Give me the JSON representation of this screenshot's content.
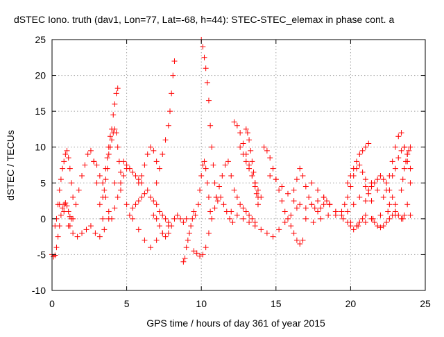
{
  "chart_data": {
    "type": "scatter",
    "title": "dSTEC Iono. truth (dav1, Lon=77, Lat=-68, h=44): STEC-STEC_elemax in phase cont. a",
    "xlabel": "GPS time / hours of day 361 of year 2015",
    "ylabel": "dSTEC  / TECUs",
    "xlim": [
      0,
      25
    ],
    "ylim": [
      -10,
      25
    ],
    "xticks": [
      0,
      5,
      10,
      15,
      20,
      25
    ],
    "yticks": [
      -10,
      -5,
      0,
      5,
      10,
      15,
      20,
      25
    ],
    "grid": true,
    "marker": "+",
    "colors": {
      "series": "#ff0000",
      "grid": "#a0a0a0",
      "axis": "#000000"
    },
    "series": [
      {
        "values_x": [
          0.0,
          0.1,
          0.2,
          0.3,
          0.4,
          0.5,
          0.6,
          0.7,
          0.8,
          0.9,
          1.0,
          1.1,
          1.2,
          1.3
        ],
        "values_y": [
          -5.0,
          -5.3,
          -5.1,
          -4.0,
          -2.5,
          -1.0,
          0.5,
          1.5,
          2.0,
          2.2,
          1.8,
          1.0,
          0.3,
          0.0
        ]
      },
      {
        "values_x": [
          0.2,
          0.3,
          0.4,
          0.5,
          0.6,
          0.7,
          0.8,
          0.9,
          1.0,
          1.1,
          1.2,
          1.3,
          1.4
        ],
        "values_y": [
          -1.0,
          0.0,
          2.0,
          4.0,
          5.5,
          7.0,
          8.0,
          9.0,
          9.5,
          8.5,
          7.0,
          5.0,
          3.0
        ]
      },
      {
        "values_x": [
          1.2,
          1.4,
          1.6,
          1.8,
          2.0,
          2.2,
          2.4,
          2.6,
          2.8,
          3.0,
          3.2,
          3.4
        ],
        "values_y": [
          -1.0,
          0.0,
          2.0,
          4.0,
          6.0,
          7.5,
          9.0,
          9.5,
          8.0,
          5.0,
          2.0,
          0.0
        ]
      },
      {
        "values_x": [
          0.5,
          0.8,
          1.1,
          1.4,
          1.7,
          2.0,
          2.3,
          2.6,
          2.9,
          3.2,
          3.5,
          3.8
        ],
        "values_y": [
          2.0,
          1.0,
          -1.0,
          -2.0,
          -2.5,
          -2.0,
          -1.5,
          -1.0,
          -2.0,
          -2.5,
          -1.5,
          0.0
        ]
      },
      {
        "values_x": [
          2.8,
          3.0,
          3.2,
          3.4,
          3.6,
          3.8,
          4.0,
          4.2,
          4.4,
          4.6,
          4.8,
          5.0
        ],
        "values_y": [
          8.0,
          7.5,
          6.0,
          5.0,
          3.0,
          1.0,
          0.0,
          1.5,
          3.0,
          5.0,
          6.0,
          7.0
        ]
      },
      {
        "values_x": [
          3.6,
          3.7,
          3.8,
          3.9,
          4.0,
          4.1,
          4.2,
          4.3,
          4.4
        ],
        "values_y": [
          7.0,
          8.5,
          10.0,
          11.5,
          12.5,
          14.5,
          16.0,
          17.5,
          18.2
        ]
      },
      {
        "values_x": [
          3.4,
          3.5,
          3.6,
          3.7,
          3.8,
          3.9,
          4.0,
          4.1,
          4.2,
          4.3,
          4.4,
          4.5,
          4.6
        ],
        "values_y": [
          3.0,
          4.0,
          5.5,
          7.0,
          9.0,
          10.0,
          11.0,
          12.0,
          12.5,
          12.0,
          10.0,
          8.0,
          6.5
        ]
      },
      {
        "values_x": [
          4.2,
          4.6,
          5.0,
          5.4,
          5.8,
          6.2,
          6.6,
          7.0,
          7.4,
          7.8
        ],
        "values_y": [
          5.0,
          4.0,
          2.0,
          0.0,
          -1.5,
          -3.0,
          -4.0,
          -3.0,
          -2.0,
          -1.0
        ]
      },
      {
        "values_x": [
          4.8,
          5.0,
          5.2,
          5.4,
          5.6,
          5.8,
          6.0
        ],
        "values_y": [
          8.0,
          7.5,
          7.0,
          6.5,
          6.0,
          5.5,
          5.0
        ]
      },
      {
        "values_x": [
          5.2,
          5.4,
          5.6,
          5.8,
          6.0,
          6.2,
          6.4,
          6.6,
          6.8,
          7.0,
          7.2,
          7.4,
          7.6,
          7.8
        ],
        "values_y": [
          0.5,
          1.5,
          2.0,
          2.5,
          3.0,
          3.5,
          4.0,
          3.0,
          2.5,
          2.0,
          1.0,
          0.5,
          0.0,
          -0.5
        ]
      },
      {
        "values_x": [
          5.8,
          6.0,
          6.2,
          6.4,
          6.6,
          6.8,
          7.0
        ],
        "values_y": [
          5.0,
          6.0,
          7.5,
          9.0,
          10.0,
          9.5,
          8.0
        ]
      },
      {
        "values_x": [
          7.0,
          7.2,
          7.4,
          7.6,
          7.8,
          7.9,
          8.0,
          8.1,
          8.2
        ],
        "values_y": [
          5.0,
          7.0,
          9.0,
          11.0,
          13.0,
          15.0,
          17.5,
          20.0,
          22.0
        ]
      },
      {
        "values_x": [
          6.8,
          7.0,
          7.2,
          7.4,
          7.6,
          7.8,
          8.0,
          8.2,
          8.4,
          8.6,
          8.8,
          9.0
        ],
        "values_y": [
          0.5,
          0.0,
          -1.0,
          -2.0,
          -2.5,
          -2.0,
          -1.0,
          0.0,
          0.5,
          0.0,
          -0.5,
          0.0
        ]
      },
      {
        "values_x": [
          8.8,
          8.9,
          9.0,
          9.1,
          9.2,
          9.3,
          9.4,
          9.5,
          9.6
        ],
        "values_y": [
          -6.0,
          -5.5,
          -4.0,
          -3.0,
          -2.0,
          -1.0,
          0.0,
          1.0,
          0.5
        ]
      },
      {
        "values_x": [
          9.5,
          9.7,
          9.9,
          10.1,
          10.3,
          10.5,
          10.7,
          10.9,
          11.1,
          11.3,
          11.5,
          11.7,
          11.9,
          12.1
        ],
        "values_y": [
          -4.5,
          -4.8,
          -5.2,
          -5.0,
          -4.0,
          -2.0,
          0.0,
          1.5,
          2.5,
          3.0,
          2.0,
          1.0,
          0.0,
          -0.5
        ]
      },
      {
        "values_x": [
          10.0,
          10.1,
          10.2,
          10.3,
          10.4,
          10.5,
          10.6,
          10.7,
          10.8,
          10.9,
          11.0
        ],
        "values_y": [
          25.0,
          24.0,
          22.5,
          21.0,
          19.0,
          16.5,
          13.0,
          10.0,
          7.5,
          5.0,
          3.0
        ]
      },
      {
        "values_x": [
          9.8,
          9.9,
          10.0,
          10.1,
          10.2,
          10.3,
          10.4,
          10.5,
          10.6
        ],
        "values_y": [
          2.0,
          4.0,
          6.0,
          7.5,
          8.0,
          7.0,
          5.0,
          3.0,
          1.0
        ]
      },
      {
        "values_x": [
          11.0,
          11.2,
          11.4,
          11.6,
          11.8,
          12.0,
          12.2,
          12.4,
          12.6,
          12.8,
          13.0,
          13.2,
          13.4,
          13.6
        ],
        "values_y": [
          3.0,
          4.5,
          6.0,
          7.5,
          8.0,
          6.0,
          4.0,
          3.0,
          2.0,
          1.5,
          1.0,
          0.5,
          0.0,
          -0.5
        ]
      },
      {
        "values_x": [
          12.2,
          12.4,
          12.6,
          12.8,
          13.0,
          13.2,
          13.4,
          13.6,
          13.8
        ],
        "values_y": [
          13.5,
          13.0,
          12.0,
          10.5,
          9.0,
          7.5,
          6.0,
          4.5,
          3.0
        ]
      },
      {
        "values_x": [
          12.6,
          12.8,
          13.0,
          13.2,
          13.4,
          13.6,
          13.8,
          14.0
        ],
        "values_y": [
          10.0,
          9.0,
          8.0,
          7.0,
          6.0,
          5.0,
          4.0,
          3.0
        ]
      },
      {
        "values_x": [
          13.0,
          13.1,
          13.2,
          13.3,
          13.4,
          13.5,
          13.6,
          13.7,
          13.8
        ],
        "values_y": [
          12.5,
          12.0,
          11.0,
          9.5,
          8.0,
          6.5,
          5.0,
          3.5,
          2.0
        ]
      },
      {
        "values_x": [
          12.0,
          12.4,
          12.8,
          13.2,
          13.6,
          14.0,
          14.4,
          14.8,
          15.2,
          15.6,
          16.0,
          16.4
        ],
        "values_y": [
          1.0,
          0.5,
          0.0,
          -0.5,
          -1.0,
          -1.5,
          -2.0,
          -2.5,
          -1.5,
          -0.5,
          0.5,
          1.5
        ]
      },
      {
        "values_x": [
          14.2,
          14.4,
          14.6,
          14.8,
          15.0,
          15.2,
          15.4,
          15.6,
          15.8,
          16.0,
          16.2,
          16.4,
          16.6,
          16.8
        ],
        "values_y": [
          10.0,
          9.5,
          8.5,
          7.0,
          5.5,
          4.0,
          2.5,
          1.0,
          0.0,
          -1.0,
          -2.0,
          -3.0,
          -3.5,
          -3.0
        ]
      },
      {
        "values_x": [
          14.6,
          15.0,
          15.4,
          15.8,
          16.2,
          16.6,
          17.0,
          17.4,
          17.8,
          18.2,
          18.6,
          19.0
        ],
        "values_y": [
          6.0,
          5.5,
          4.5,
          3.5,
          2.5,
          2.0,
          1.5,
          2.0,
          2.5,
          3.0,
          2.0,
          1.0
        ]
      },
      {
        "values_x": [
          16.2,
          16.4,
          16.6,
          16.8,
          17.0,
          17.2,
          17.4,
          17.6,
          17.8,
          18.0,
          18.2,
          18.4,
          18.6
        ],
        "values_y": [
          4.0,
          5.5,
          7.0,
          6.0,
          4.5,
          3.0,
          2.0,
          1.5,
          1.0,
          1.5,
          2.0,
          2.5,
          2.0
        ]
      },
      {
        "values_x": [
          17.4,
          17.8,
          18.2,
          18.6,
          19.0,
          19.4,
          19.8,
          20.2,
          20.6,
          21.0,
          21.4,
          21.8,
          22.2,
          22.6,
          23.0
        ],
        "values_y": [
          5.0,
          4.0,
          3.0,
          2.0,
          1.0,
          0.5,
          1.0,
          2.0,
          3.0,
          4.5,
          5.0,
          4.0,
          3.0,
          2.0,
          1.0
        ]
      },
      {
        "values_x": [
          17.0,
          17.5,
          18.0,
          18.5,
          19.0,
          19.5,
          20.0,
          20.5,
          21.0,
          21.5,
          22.0,
          22.5,
          23.0,
          23.5,
          24.0
        ],
        "values_y": [
          0.0,
          -0.5,
          0.0,
          0.5,
          0.5,
          0.0,
          -0.5,
          -1.0,
          -0.5,
          0.0,
          0.5,
          1.0,
          0.5,
          0.0,
          0.5
        ]
      },
      {
        "values_x": [
          19.8,
          20.0,
          20.2,
          20.4,
          20.6,
          20.8,
          21.0,
          21.2
        ],
        "values_y": [
          5.0,
          6.0,
          7.0,
          8.0,
          9.0,
          9.5,
          10.0,
          10.5
        ]
      },
      {
        "values_x": [
          19.4,
          19.6,
          19.8,
          20.0,
          20.2,
          20.4,
          20.6,
          20.8,
          21.0,
          21.2,
          21.4
        ],
        "values_y": [
          1.0,
          2.0,
          3.0,
          4.5,
          6.0,
          7.0,
          7.5,
          6.5,
          5.5,
          4.0,
          2.5
        ]
      },
      {
        "values_x": [
          19.8,
          20.0,
          20.2,
          20.4,
          20.6,
          20.8,
          21.0
        ],
        "values_y": [
          -0.5,
          -1.0,
          -1.5,
          -1.0,
          -0.5,
          0.0,
          0.5
        ]
      },
      {
        "values_x": [
          21.0,
          21.2,
          21.4,
          21.6,
          21.8,
          22.0,
          22.2,
          22.4,
          22.6,
          22.8,
          23.0
        ],
        "values_y": [
          2.5,
          3.5,
          4.5,
          5.0,
          5.5,
          6.0,
          5.5,
          5.0,
          4.0,
          3.0,
          2.0
        ]
      },
      {
        "values_x": [
          21.4,
          21.6,
          21.8,
          22.0,
          22.2,
          22.4,
          22.6,
          22.8,
          23.0
        ],
        "values_y": [
          0.0,
          -0.5,
          -1.0,
          -1.2,
          -1.0,
          -0.5,
          0.0,
          0.5,
          1.0
        ]
      },
      {
        "values_x": [
          22.4,
          22.6,
          22.8,
          23.0,
          23.2,
          23.4,
          23.6,
          23.8
        ],
        "values_y": [
          4.0,
          6.0,
          8.0,
          10.0,
          11.5,
          12.0,
          10.0,
          8.0
        ]
      },
      {
        "values_x": [
          22.8,
          23.0,
          23.2,
          23.4,
          23.6,
          23.8,
          24.0
        ],
        "values_y": [
          6.0,
          7.0,
          8.5,
          9.5,
          10.0,
          9.0,
          7.0
        ]
      },
      {
        "values_x": [
          23.0,
          23.2,
          23.4,
          23.6,
          23.8,
          24.0
        ],
        "values_y": [
          1.0,
          0.5,
          0.0,
          0.5,
          2.0,
          5.0
        ]
      },
      {
        "values_x": [
          23.4,
          23.5,
          23.6,
          23.7,
          23.8,
          23.9,
          24.0
        ],
        "values_y": [
          4.0,
          5.5,
          7.0,
          8.0,
          9.0,
          9.5,
          10.0
        ]
      }
    ]
  }
}
